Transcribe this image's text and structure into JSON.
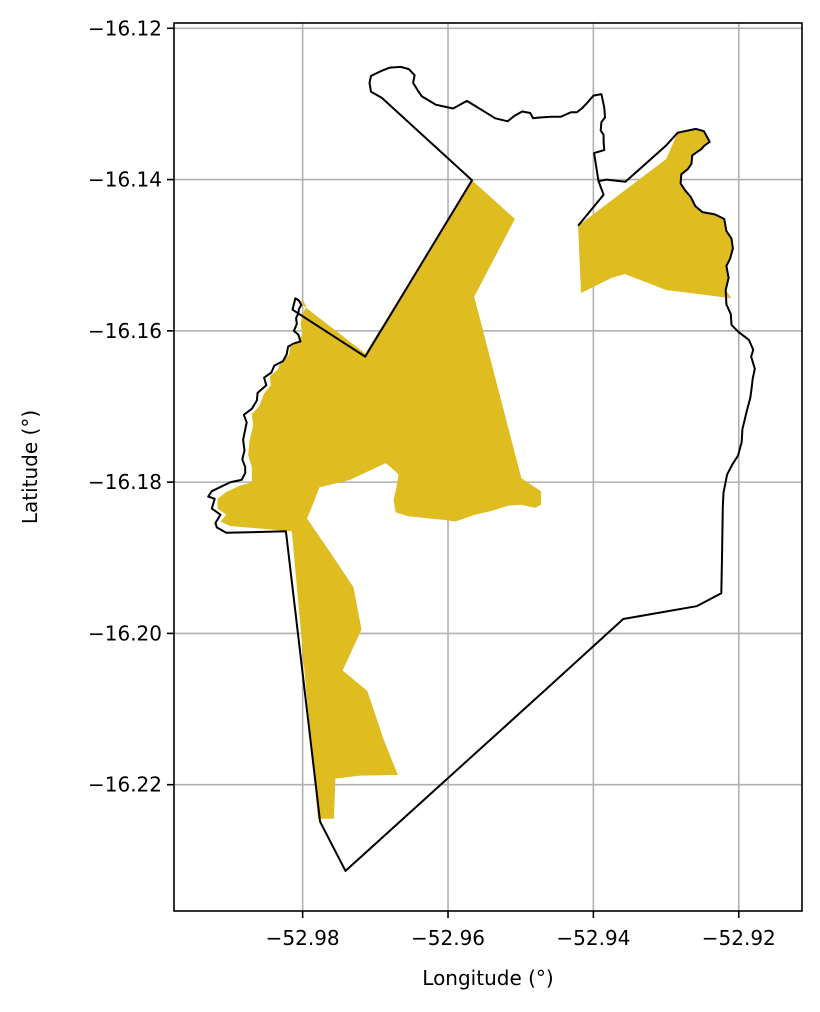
{
  "chart_data": {
    "type": "map",
    "title": "",
    "xlabel": "Longitude (°)",
    "ylabel": "Latitude (°)",
    "xlim": [
      -52.9977,
      -52.9113
    ],
    "ylim": [
      -16.2367,
      -16.1193
    ],
    "grid": true,
    "x_ticks": [
      {
        "value": -52.98,
        "label": "−52.98"
      },
      {
        "value": -52.96,
        "label": "−52.96"
      },
      {
        "value": -52.94,
        "label": "−52.94"
      },
      {
        "value": -52.92,
        "label": "−52.92"
      }
    ],
    "y_ticks": [
      {
        "value": -16.12,
        "label": "−16.12"
      },
      {
        "value": -16.14,
        "label": "−16.14"
      },
      {
        "value": -16.16,
        "label": "−16.16"
      },
      {
        "value": -16.18,
        "label": "−16.18"
      },
      {
        "value": -16.2,
        "label": "−16.20"
      },
      {
        "value": -16.22,
        "label": "−16.22"
      }
    ],
    "colors": {
      "fill": "#dfbc20",
      "outline": "#000000",
      "grid": "#b0b0b0"
    },
    "outline": [
      [
        -52.9741,
        -16.2314
      ],
      [
        -52.9776,
        -16.2249
      ],
      [
        -52.9823,
        -16.1865
      ],
      [
        -52.9905,
        -16.1867
      ],
      [
        -52.9918,
        -16.186
      ],
      [
        -52.992,
        -16.1854
      ],
      [
        -52.9913,
        -16.1843
      ],
      [
        -52.9925,
        -16.1835
      ],
      [
        -52.9921,
        -16.1822
      ],
      [
        -52.993,
        -16.1819
      ],
      [
        -52.9925,
        -16.1812
      ],
      [
        -52.991,
        -16.1805
      ],
      [
        -52.9899,
        -16.18
      ],
      [
        -52.9884,
        -16.1797
      ],
      [
        -52.9879,
        -16.1788
      ],
      [
        -52.9879,
        -16.178
      ],
      [
        -52.9883,
        -16.177
      ],
      [
        -52.988,
        -16.1758
      ],
      [
        -52.9882,
        -16.1744
      ],
      [
        -52.988,
        -16.1735
      ],
      [
        -52.9877,
        -16.1721
      ],
      [
        -52.9881,
        -16.1711
      ],
      [
        -52.987,
        -16.1703
      ],
      [
        -52.9863,
        -16.1692
      ],
      [
        -52.9862,
        -16.1682
      ],
      [
        -52.985,
        -16.1672
      ],
      [
        -52.9853,
        -16.1662
      ],
      [
        -52.9843,
        -16.1655
      ],
      [
        -52.9839,
        -16.1646
      ],
      [
        -52.9827,
        -16.164
      ],
      [
        -52.9822,
        -16.1631
      ],
      [
        -52.982,
        -16.1621
      ],
      [
        -52.9813,
        -16.1617
      ],
      [
        -52.9803,
        -16.1614
      ],
      [
        -52.9806,
        -16.1605
      ],
      [
        -52.9812,
        -16.16
      ],
      [
        -52.9808,
        -16.1591
      ],
      [
        -52.9809,
        -16.1583
      ],
      [
        -52.9806,
        -16.1577
      ],
      [
        -52.9805,
        -16.1571
      ],
      [
        -52.9802,
        -16.1566
      ],
      [
        -52.9805,
        -16.156
      ],
      [
        -52.981,
        -16.1557
      ],
      [
        -52.9814,
        -16.1572
      ],
      [
        -52.9714,
        -16.1634
      ],
      [
        -52.9567,
        -16.1401
      ],
      [
        -52.9691,
        -16.1292
      ],
      [
        -52.9706,
        -16.1284
      ],
      [
        -52.9708,
        -16.1272
      ],
      [
        -52.9706,
        -16.1263
      ],
      [
        -52.9691,
        -16.1256
      ],
      [
        -52.968,
        -16.1252
      ],
      [
        -52.9665,
        -16.1251
      ],
      [
        -52.9654,
        -16.1254
      ],
      [
        -52.9646,
        -16.1262
      ],
      [
        -52.9648,
        -16.1272
      ],
      [
        -52.9641,
        -16.1283
      ],
      [
        -52.9636,
        -16.129
      ],
      [
        -52.9622,
        -16.1298
      ],
      [
        -52.9617,
        -16.1301
      ],
      [
        -52.9593,
        -16.1306
      ],
      [
        -52.9574,
        -16.1296
      ],
      [
        -52.9535,
        -16.1319
      ],
      [
        -52.9518,
        -16.1323
      ],
      [
        -52.9509,
        -16.1316
      ],
      [
        -52.9498,
        -16.131
      ],
      [
        -52.9487,
        -16.1312
      ],
      [
        -52.9483,
        -16.1319
      ],
      [
        -52.9474,
        -16.1318
      ],
      [
        -52.9458,
        -16.1317
      ],
      [
        -52.9445,
        -16.1317
      ],
      [
        -52.9438,
        -16.1314
      ],
      [
        -52.9431,
        -16.1311
      ],
      [
        -52.9423,
        -16.1311
      ],
      [
        -52.9416,
        -16.1306
      ],
      [
        -52.9408,
        -16.1298
      ],
      [
        -52.94,
        -16.1289
      ],
      [
        -52.9389,
        -16.1287
      ],
      [
        -52.9385,
        -16.1305
      ],
      [
        -52.9384,
        -16.1318
      ],
      [
        -52.9389,
        -16.1324
      ],
      [
        -52.939,
        -16.1335
      ],
      [
        -52.9386,
        -16.1341
      ],
      [
        -52.9386,
        -16.135
      ],
      [
        -52.9385,
        -16.1361
      ],
      [
        -52.9399,
        -16.1365
      ],
      [
        -52.9393,
        -16.1402
      ],
      [
        -52.9382,
        -16.14
      ],
      [
        -52.9356,
        -16.1403
      ],
      [
        -52.93,
        -16.1355
      ],
      [
        -52.9284,
        -16.1338
      ],
      [
        -52.9259,
        -16.1333
      ],
      [
        -52.9248,
        -16.1336
      ],
      [
        -52.9244,
        -16.1343
      ],
      [
        -52.924,
        -16.135
      ],
      [
        -52.9247,
        -16.1355
      ],
      [
        -52.9252,
        -16.136
      ],
      [
        -52.9264,
        -16.1368
      ],
      [
        -52.9265,
        -16.1379
      ],
      [
        -52.927,
        -16.1386
      ],
      [
        -52.9279,
        -16.1393
      ],
      [
        -52.928,
        -16.1405
      ],
      [
        -52.9274,
        -16.1414
      ],
      [
        -52.9266,
        -16.1423
      ],
      [
        -52.926,
        -16.1435
      ],
      [
        -52.925,
        -16.1443
      ],
      [
        -52.9233,
        -16.1446
      ],
      [
        -52.922,
        -16.1452
      ],
      [
        -52.9217,
        -16.1468
      ],
      [
        -52.921,
        -16.1478
      ],
      [
        -52.9208,
        -16.1491
      ],
      [
        -52.9212,
        -16.1505
      ],
      [
        -52.9217,
        -16.1514
      ],
      [
        -52.9214,
        -16.153
      ],
      [
        -52.9218,
        -16.1546
      ],
      [
        -52.9217,
        -16.1565
      ],
      [
        -52.9211,
        -16.1578
      ],
      [
        -52.921,
        -16.1592
      ],
      [
        -52.9201,
        -16.1601
      ],
      [
        -52.9186,
        -16.1612
      ],
      [
        -52.918,
        -16.1625
      ],
      [
        -52.9183,
        -16.1634
      ],
      [
        -52.9178,
        -16.165
      ],
      [
        -52.9181,
        -16.1664
      ],
      [
        -52.9182,
        -16.1674
      ],
      [
        -52.9184,
        -16.1688
      ],
      [
        -52.9189,
        -16.1706
      ],
      [
        -52.9195,
        -16.173
      ],
      [
        -52.9196,
        -16.1747
      ],
      [
        -52.9201,
        -16.1765
      ],
      [
        -52.9209,
        -16.1777
      ],
      [
        -52.9216,
        -16.179
      ],
      [
        -52.9221,
        -16.1814
      ],
      [
        -52.9222,
        -16.1833
      ],
      [
        -52.9223,
        -16.19
      ],
      [
        -52.9224,
        -16.1947
      ],
      [
        -52.9258,
        -16.1964
      ],
      [
        -52.9359,
        -16.1981
      ],
      [
        -52.9463,
        -16.2072
      ],
      [
        -52.9741,
        -16.2314
      ]
    ],
    "outline_2": [
      [
        -52.9421,
        -16.1461
      ],
      [
        -52.9386,
        -16.142
      ],
      [
        -52.9393,
        -16.1402
      ]
    ],
    "regions": [
      {
        "points": [
          [
            -52.99,
            -16.1858
          ],
          [
            -52.9913,
            -16.1852
          ],
          [
            -52.9905,
            -16.1843
          ],
          [
            -52.9917,
            -16.1835
          ],
          [
            -52.9917,
            -16.1822
          ],
          [
            -52.9905,
            -16.1813
          ],
          [
            -52.9887,
            -16.1805
          ],
          [
            -52.987,
            -16.18
          ],
          [
            -52.987,
            -16.178
          ],
          [
            -52.9875,
            -16.1764
          ],
          [
            -52.9873,
            -16.1745
          ],
          [
            -52.9868,
            -16.1725
          ],
          [
            -52.987,
            -16.171
          ],
          [
            -52.986,
            -16.17
          ],
          [
            -52.9853,
            -16.1683
          ],
          [
            -52.9844,
            -16.1672
          ],
          [
            -52.9845,
            -16.166
          ],
          [
            -52.9834,
            -16.1651
          ],
          [
            -52.983,
            -16.1641
          ],
          [
            -52.9819,
            -16.1632
          ],
          [
            -52.9817,
            -16.1621
          ],
          [
            -52.9807,
            -16.1615
          ],
          [
            -52.98,
            -16.1604
          ],
          [
            -52.9803,
            -16.1592
          ],
          [
            -52.98,
            -16.1578
          ],
          [
            -52.9795,
            -16.1568
          ],
          [
            -52.9799,
            -16.1561
          ],
          [
            -52.9808,
            -16.156
          ],
          [
            -52.9714,
            -16.163
          ],
          [
            -52.9567,
            -16.1401
          ],
          [
            -52.9508,
            -16.1452
          ],
          [
            -52.9564,
            -16.1555
          ],
          [
            -52.9499,
            -16.1795
          ],
          [
            -52.9472,
            -16.1812
          ],
          [
            -52.9472,
            -16.183
          ],
          [
            -52.948,
            -16.1834
          ],
          [
            -52.95,
            -16.183
          ],
          [
            -52.9517,
            -16.1831
          ],
          [
            -52.954,
            -16.1838
          ],
          [
            -52.9563,
            -16.1843
          ],
          [
            -52.959,
            -16.1852
          ],
          [
            -52.9606,
            -16.185
          ],
          [
            -52.9627,
            -16.1848
          ],
          [
            -52.9655,
            -16.1845
          ],
          [
            -52.9672,
            -16.184
          ],
          [
            -52.9675,
            -16.1824
          ],
          [
            -52.9671,
            -16.1807
          ],
          [
            -52.9668,
            -16.179
          ],
          [
            -52.9679,
            -16.178
          ],
          [
            -52.9686,
            -16.1775
          ],
          [
            -52.9735,
            -16.1797
          ],
          [
            -52.9777,
            -16.1807
          ],
          [
            -52.9787,
            -16.1832
          ],
          [
            -52.9794,
            -16.1848
          ],
          [
            -52.9764,
            -16.189
          ],
          [
            -52.973,
            -16.1939
          ],
          [
            -52.9719,
            -16.1995
          ],
          [
            -52.9745,
            -16.2049
          ],
          [
            -52.9711,
            -16.2076
          ],
          [
            -52.9688,
            -16.2142
          ],
          [
            -52.9669,
            -16.2187
          ],
          [
            -52.9721,
            -16.2188
          ],
          [
            -52.9755,
            -16.2192
          ],
          [
            -52.9757,
            -16.2245
          ],
          [
            -52.9779,
            -16.2245
          ],
          [
            -52.9815,
            -16.1865
          ]
        ]
      },
      {
        "points": [
          [
            -52.9421,
            -16.1461
          ],
          [
            -52.93,
            -16.1373
          ],
          [
            -52.9284,
            -16.1338
          ],
          [
            -52.9259,
            -16.1333
          ],
          [
            -52.9248,
            -16.1336
          ],
          [
            -52.9244,
            -16.1343
          ],
          [
            -52.924,
            -16.135
          ],
          [
            -52.9247,
            -16.1355
          ],
          [
            -52.9252,
            -16.136
          ],
          [
            -52.9264,
            -16.1368
          ],
          [
            -52.9265,
            -16.1379
          ],
          [
            -52.927,
            -16.1386
          ],
          [
            -52.9279,
            -16.1393
          ],
          [
            -52.928,
            -16.1405
          ],
          [
            -52.9274,
            -16.1414
          ],
          [
            -52.9266,
            -16.1423
          ],
          [
            -52.926,
            -16.1435
          ],
          [
            -52.925,
            -16.1443
          ],
          [
            -52.9233,
            -16.1446
          ],
          [
            -52.922,
            -16.1452
          ],
          [
            -52.9217,
            -16.1468
          ],
          [
            -52.921,
            -16.1478
          ],
          [
            -52.9208,
            -16.1491
          ],
          [
            -52.9212,
            -16.1505
          ],
          [
            -52.9217,
            -16.1514
          ],
          [
            -52.9214,
            -16.153
          ],
          [
            -52.9218,
            -16.1546
          ],
          [
            -52.921,
            -16.1557
          ],
          [
            -52.93,
            -16.1546
          ],
          [
            -52.9327,
            -16.1536
          ],
          [
            -52.9357,
            -16.1525
          ],
          [
            -52.9375,
            -16.153
          ],
          [
            -52.9417,
            -16.155
          ]
        ]
      }
    ]
  }
}
